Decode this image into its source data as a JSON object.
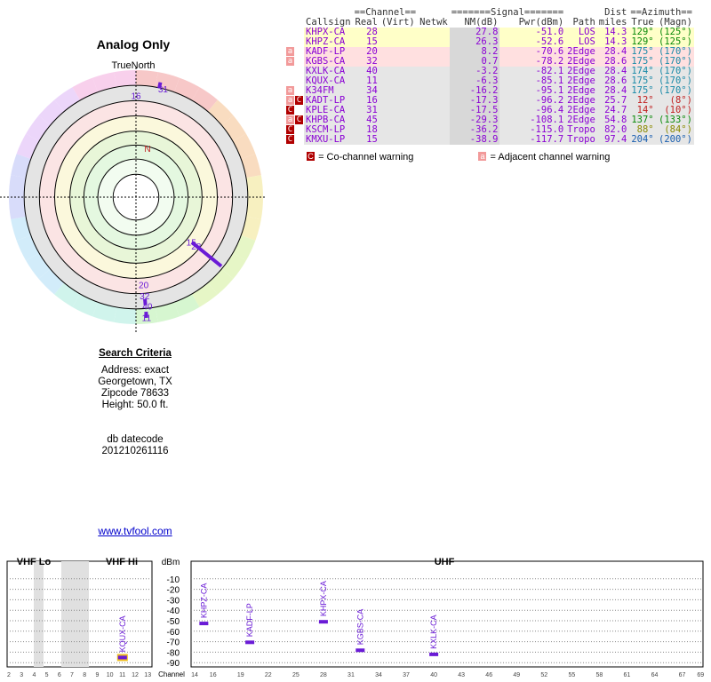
{
  "title": "Analog Only",
  "true_north_label": "TrueNorth",
  "north_marker": "N",
  "search": {
    "heading": "Search Criteria",
    "address": "Address: exact",
    "city": "Georgetown, TX",
    "zipcode": "Zipcode 78633",
    "height": "Height: 50.0 ft.",
    "db_label": "db datecode",
    "db_value": "201210261116"
  },
  "link_text": "www.tvfool.com",
  "table": {
    "group_headers": [
      "==Channel==",
      "=======Signal=======",
      "Dist",
      "==Azimuth=="
    ],
    "columns": [
      "Callsign",
      "Real",
      "(Virt)",
      "Netwk",
      "NM(dB)",
      "Pwr(dBm)",
      "Path",
      "miles",
      "True",
      "(Magn)"
    ],
    "rows": [
      {
        "warn": [],
        "callsign": "KHPX-CA",
        "real": "28",
        "nm": "27.8",
        "pwr": "-51.0",
        "path": "LOS",
        "dist": "14.3",
        "true": "129°",
        "magn": "(125°)",
        "bg": "#ffffc8",
        "color": "#8a00d4",
        "azcolor": "#0a8a0a"
      },
      {
        "warn": [],
        "callsign": "KHPZ-CA",
        "real": "15",
        "nm": "26.3",
        "pwr": "-52.6",
        "path": "LOS",
        "dist": "14.3",
        "true": "129°",
        "magn": "(125°)",
        "bg": "#ffffc8",
        "color": "#8a00d4",
        "azcolor": "#0a8a0a"
      },
      {
        "warn": [
          "a"
        ],
        "callsign": "KADF-LP",
        "real": "20",
        "nm": "8.2",
        "pwr": "-70.6",
        "path": "2Edge",
        "dist": "28.4",
        "true": "175°",
        "magn": "(170°)",
        "bg": "#ffe0e0",
        "color": "#8a00d4",
        "azcolor": "#1a8aa8"
      },
      {
        "warn": [
          "a"
        ],
        "callsign": "KGBS-CA",
        "real": "32",
        "nm": "0.7",
        "pwr": "-78.2",
        "path": "2Edge",
        "dist": "28.6",
        "true": "175°",
        "magn": "(170°)",
        "bg": "#ffe0e0",
        "color": "#8a00d4",
        "azcolor": "#1a8aa8"
      },
      {
        "warn": [],
        "callsign": "KXLK-CA",
        "real": "40",
        "nm": "-3.2",
        "pwr": "-82.1",
        "path": "2Edge",
        "dist": "28.4",
        "true": "174°",
        "magn": "(170°)",
        "bg": "#e6e6e6",
        "color": "#8a00d4",
        "azcolor": "#1a8aa8"
      },
      {
        "warn": [],
        "callsign": "KQUX-CA",
        "real": "11",
        "nm": "-6.3",
        "pwr": "-85.1",
        "path": "2Edge",
        "dist": "28.6",
        "true": "175°",
        "magn": "(170°)",
        "bg": "#e6e6e6",
        "color": "#8a00d4",
        "azcolor": "#1a8aa8"
      },
      {
        "warn": [
          "a"
        ],
        "callsign": "K34FM",
        "real": "34",
        "nm": "-16.2",
        "pwr": "-95.1",
        "path": "2Edge",
        "dist": "28.4",
        "true": "175°",
        "magn": "(170°)",
        "bg": "#e6e6e6",
        "color": "#8a00d4",
        "azcolor": "#1a8aa8"
      },
      {
        "warn": [
          "a",
          "c"
        ],
        "callsign": "KADT-LP",
        "real": "16",
        "nm": "-17.3",
        "pwr": "-96.2",
        "path": "2Edge",
        "dist": "25.7",
        "true": "12°",
        "magn": "(8°)",
        "bg": "#e6e6e6",
        "color": "#8a00d4",
        "azcolor": "#c02020"
      },
      {
        "warn": [
          "c"
        ],
        "callsign": "KPLE-CA",
        "real": "31",
        "nm": "-17.5",
        "pwr": "-96.4",
        "path": "2Edge",
        "dist": "24.7",
        "true": "14°",
        "magn": "(10°)",
        "bg": "#e6e6e6",
        "color": "#8a00d4",
        "azcolor": "#c02020"
      },
      {
        "warn": [
          "a",
          "c"
        ],
        "callsign": "KHPB-CA",
        "real": "45",
        "nm": "-29.3",
        "pwr": "-108.1",
        "path": "2Edge",
        "dist": "54.8",
        "true": "137°",
        "magn": "(133°)",
        "bg": "#e6e6e6",
        "color": "#8a00d4",
        "azcolor": "#0a8a0a"
      },
      {
        "warn": [
          "c"
        ],
        "callsign": "KSCM-LP",
        "real": "18",
        "nm": "-36.2",
        "pwr": "-115.0",
        "path": "Tropo",
        "dist": "82.0",
        "true": "88°",
        "magn": "(84°)",
        "bg": "#e6e6e6",
        "color": "#8a00d4",
        "azcolor": "#8a8a00"
      },
      {
        "warn": [
          "c"
        ],
        "callsign": "KMXU-LP",
        "real": "15",
        "nm": "-38.9",
        "pwr": "-117.7",
        "path": "Tropo",
        "dist": "97.4",
        "true": "204°",
        "magn": "(200°)",
        "bg": "#e6e6e6",
        "color": "#8a00d4",
        "azcolor": "#1a5fb0"
      }
    ]
  },
  "legend": {
    "co_glyph": "C",
    "co_text": "= Co-channel warning",
    "adj_glyph": "a",
    "adj_text": "= Adjacent channel warning",
    "co_color": "#b00000",
    "adj_color": "#f29a9a"
  },
  "polar": {
    "labels": [
      {
        "text": "31",
        "az": 14,
        "r": 0.88
      },
      {
        "text": "16",
        "az": 0,
        "r": 0.8
      },
      {
        "text": "28",
        "az": 129,
        "r": 0.61
      },
      {
        "text": "15",
        "az": 129,
        "r": 0.56
      },
      {
        "text": "20",
        "az": 175,
        "r": 0.69
      },
      {
        "text": "32",
        "az": 175,
        "r": 0.78
      },
      {
        "text": "40",
        "az": 174,
        "r": 0.86
      },
      {
        "text": "11",
        "az": 175,
        "r": 0.95
      }
    ],
    "stations": [
      {
        "az": 129,
        "from": 0.58,
        "to": 0.85,
        "color": "#6a1bd6"
      },
      {
        "az": 175,
        "from": 0.82,
        "to": 0.84,
        "color": "#6a1bd6"
      },
      {
        "az": 175,
        "from": 0.92,
        "to": 0.94,
        "color": "#6a1bd6"
      },
      {
        "az": 12,
        "from": 0.89,
        "to": 0.91,
        "color": "#6a1bd6"
      }
    ]
  },
  "spectrum": {
    "bands": {
      "vhf_lo": "VHF Lo",
      "vhf_hi": "VHF Hi",
      "uhf": "UHF"
    },
    "dbm_label": "dBm",
    "channel_label": "Channel",
    "dbm_ticks": [
      "-10",
      "-20",
      "-30",
      "-40",
      "-50",
      "-60",
      "-70",
      "-80",
      "-90"
    ],
    "vhf_ticks": [
      "2",
      "3",
      "4",
      "5",
      "6",
      "7",
      "8",
      "9",
      "10",
      "11",
      "12",
      "13"
    ],
    "uhf_ticks": [
      "14",
      "16",
      "19",
      "22",
      "25",
      "28",
      "31",
      "34",
      "37",
      "40",
      "43",
      "46",
      "49",
      "52",
      "55",
      "58",
      "61",
      "64",
      "67",
      "69"
    ],
    "bars": [
      {
        "label": "KQUX-CA",
        "channel": 11,
        "dbm": -85.1,
        "band": "vhf",
        "highlight": true
      },
      {
        "label": "KHPZ-CA",
        "channel": 15,
        "dbm": -52.6,
        "band": "uhf"
      },
      {
        "label": "KADF-LP",
        "channel": 20,
        "dbm": -70.6,
        "band": "uhf"
      },
      {
        "label": "KHPX-CA",
        "channel": 28,
        "dbm": -51.0,
        "band": "uhf"
      },
      {
        "label": "KGBS-CA",
        "channel": 32,
        "dbm": -78.2,
        "band": "uhf"
      },
      {
        "label": "KXLK-CA",
        "channel": 40,
        "dbm": -82.1,
        "band": "uhf"
      }
    ]
  }
}
